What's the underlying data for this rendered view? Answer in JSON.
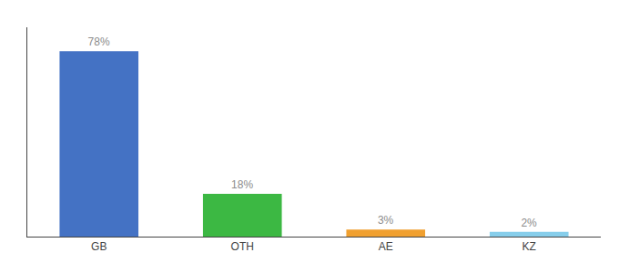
{
  "chart_data": {
    "type": "bar",
    "categories": [
      "GB",
      "OTH",
      "AE",
      "KZ"
    ],
    "values": [
      78,
      18,
      3,
      2
    ],
    "value_labels": [
      "78%",
      "18%",
      "3%",
      "2%"
    ],
    "data_labels": true,
    "colors": [
      "#4472c4",
      "#3cb843",
      "#f0a030",
      "#87ceeb"
    ],
    "ylim": [
      0,
      88
    ],
    "tick_labels": "x",
    "grid": false
  }
}
